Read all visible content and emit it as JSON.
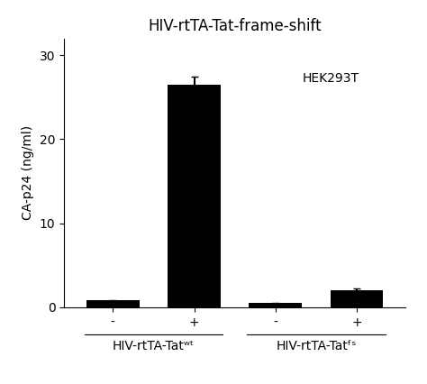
{
  "chart_data": {
    "type": "bar",
    "title": "HIV-rtTA-Tat-frame-shift",
    "categories": [
      "-",
      "+",
      "-",
      "+"
    ],
    "values": [
      0.8,
      26.5,
      0.5,
      2.0
    ],
    "errors": [
      0.05,
      1.0,
      0.05,
      0.2
    ],
    "color": "black",
    "group_labels": [
      "HIV-rtTA-Tatʷᵗ",
      "HIV-rtTA-Tatᶠˢ"
    ],
    "annotations": [
      "HEK293T"
    ],
    "ylabel": "CA-p24 (ng/ml)",
    "ylim": [
      0,
      32
    ],
    "yticks": [
      0,
      10,
      20,
      30
    ],
    "grid": false
  }
}
